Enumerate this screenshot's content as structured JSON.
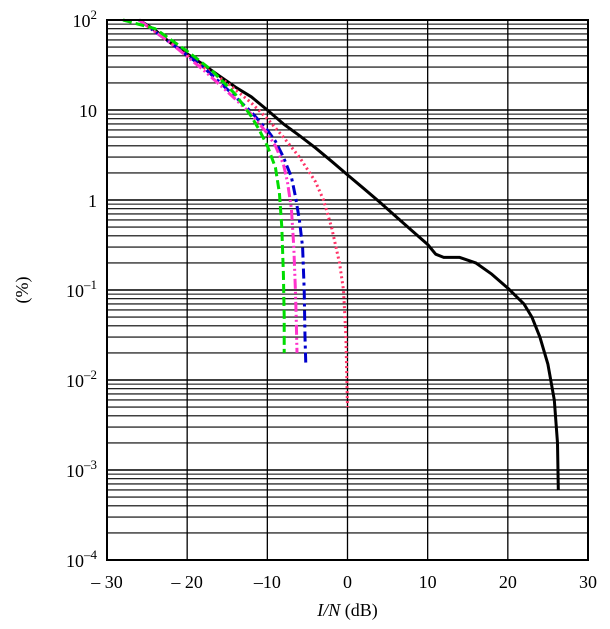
{
  "chart_data": {
    "type": "line",
    "title": "",
    "xlabel": "I/N (dB)",
    "xlabel_italic_part": "I/N",
    "xlabel_unit_part": " (dB)",
    "ylabel": "(%)",
    "xlim": [
      -30,
      30
    ],
    "ylim": [
      0.0001,
      100
    ],
    "yscale": "log",
    "grid": true,
    "xticks": [
      -30,
      -20,
      -10,
      0,
      10,
      20,
      30
    ],
    "xtick_labels": [
      "– 30",
      "– 20",
      "–10",
      "0",
      "10",
      "20",
      "30"
    ],
    "yticks": [
      {
        "value": 100,
        "base": "10",
        "exp": "2"
      },
      {
        "value": 10,
        "base": "10",
        "exp": ""
      },
      {
        "value": 1,
        "base": "1",
        "exp": ""
      },
      {
        "value": 0.1,
        "base": "10",
        "exp": "–1"
      },
      {
        "value": 0.01,
        "base": "10",
        "exp": "–2"
      },
      {
        "value": 0.001,
        "base": "10",
        "exp": "–3"
      },
      {
        "value": 0.0001,
        "base": "10",
        "exp": "–4"
      }
    ],
    "series": [
      {
        "color": "#000000",
        "style": "solid",
        "points": [
          [
            -26,
            100
          ],
          [
            -24,
            77
          ],
          [
            -22,
            55
          ],
          [
            -20,
            42
          ],
          [
            -18,
            32
          ],
          [
            -16,
            24
          ],
          [
            -14,
            18
          ],
          [
            -12,
            14
          ],
          [
            -10,
            10
          ],
          [
            -8,
            7
          ],
          [
            -6,
            5.2
          ],
          [
            -4,
            3.8
          ],
          [
            -2,
            2.7
          ],
          [
            0,
            1.9
          ],
          [
            2,
            1.35
          ],
          [
            4,
            0.95
          ],
          [
            6,
            0.66
          ],
          [
            8,
            0.46
          ],
          [
            10,
            0.32
          ],
          [
            11,
            0.25
          ],
          [
            12,
            0.23
          ],
          [
            14,
            0.23
          ],
          [
            16,
            0.2
          ],
          [
            18,
            0.15
          ],
          [
            20,
            0.105
          ],
          [
            22,
            0.07
          ],
          [
            23,
            0.05
          ],
          [
            24,
            0.03
          ],
          [
            25,
            0.015
          ],
          [
            25.8,
            0.006
          ],
          [
            26.2,
            0.002
          ],
          [
            26.3,
            0.0006
          ]
        ]
      },
      {
        "color": "#ff3366",
        "style": "dotted",
        "points": [
          [
            -26,
            100
          ],
          [
            -22,
            55
          ],
          [
            -18,
            30
          ],
          [
            -15,
            20
          ],
          [
            -12,
            12
          ],
          [
            -10,
            8
          ],
          [
            -8,
            5
          ],
          [
            -6,
            3
          ],
          [
            -4,
            1.6
          ],
          [
            -3,
            1
          ],
          [
            -2,
            0.5
          ],
          [
            -1,
            0.2
          ],
          [
            -0.5,
            0.1
          ],
          [
            -0.2,
            0.03
          ],
          [
            0,
            0.005
          ]
        ]
      },
      {
        "color": "#0000cc",
        "style": "dashdot",
        "points": [
          [
            -26,
            100
          ],
          [
            -22,
            55
          ],
          [
            -18,
            30
          ],
          [
            -15,
            17
          ],
          [
            -12,
            9.5
          ],
          [
            -10,
            6
          ],
          [
            -9,
            4.5
          ],
          [
            -8,
            3
          ],
          [
            -7,
            1.8
          ],
          [
            -6.5,
            1.1
          ],
          [
            -6,
            0.6
          ],
          [
            -5.6,
            0.3
          ],
          [
            -5.4,
            0.1
          ],
          [
            -5.3,
            0.03
          ],
          [
            -5.2,
            0.015
          ]
        ]
      },
      {
        "color": "#ff33cc",
        "style": "dashdotdot",
        "points": [
          [
            -26,
            100
          ],
          [
            -22,
            55
          ],
          [
            -18,
            28
          ],
          [
            -15,
            16
          ],
          [
            -12,
            9
          ],
          [
            -10,
            5.5
          ],
          [
            -9,
            4
          ],
          [
            -8,
            2.5
          ],
          [
            -7.5,
            1.6
          ],
          [
            -7,
            0.8
          ],
          [
            -6.7,
            0.3
          ],
          [
            -6.5,
            0.1
          ],
          [
            -6.4,
            0.05
          ],
          [
            -6.3,
            0.02
          ]
        ]
      },
      {
        "color": "#00dd00",
        "style": "dashed",
        "points": [
          [
            -28,
            100
          ],
          [
            -24,
            80
          ],
          [
            -20,
            45
          ],
          [
            -17,
            28
          ],
          [
            -14,
            15
          ],
          [
            -12,
            8.5
          ],
          [
            -11,
            6
          ],
          [
            -10,
            4
          ],
          [
            -9,
            2.3
          ],
          [
            -8.5,
            1.2
          ],
          [
            -8.2,
            0.5
          ],
          [
            -8,
            0.15
          ],
          [
            -7.9,
            0.05
          ],
          [
            -7.9,
            0.02
          ]
        ]
      }
    ]
  }
}
